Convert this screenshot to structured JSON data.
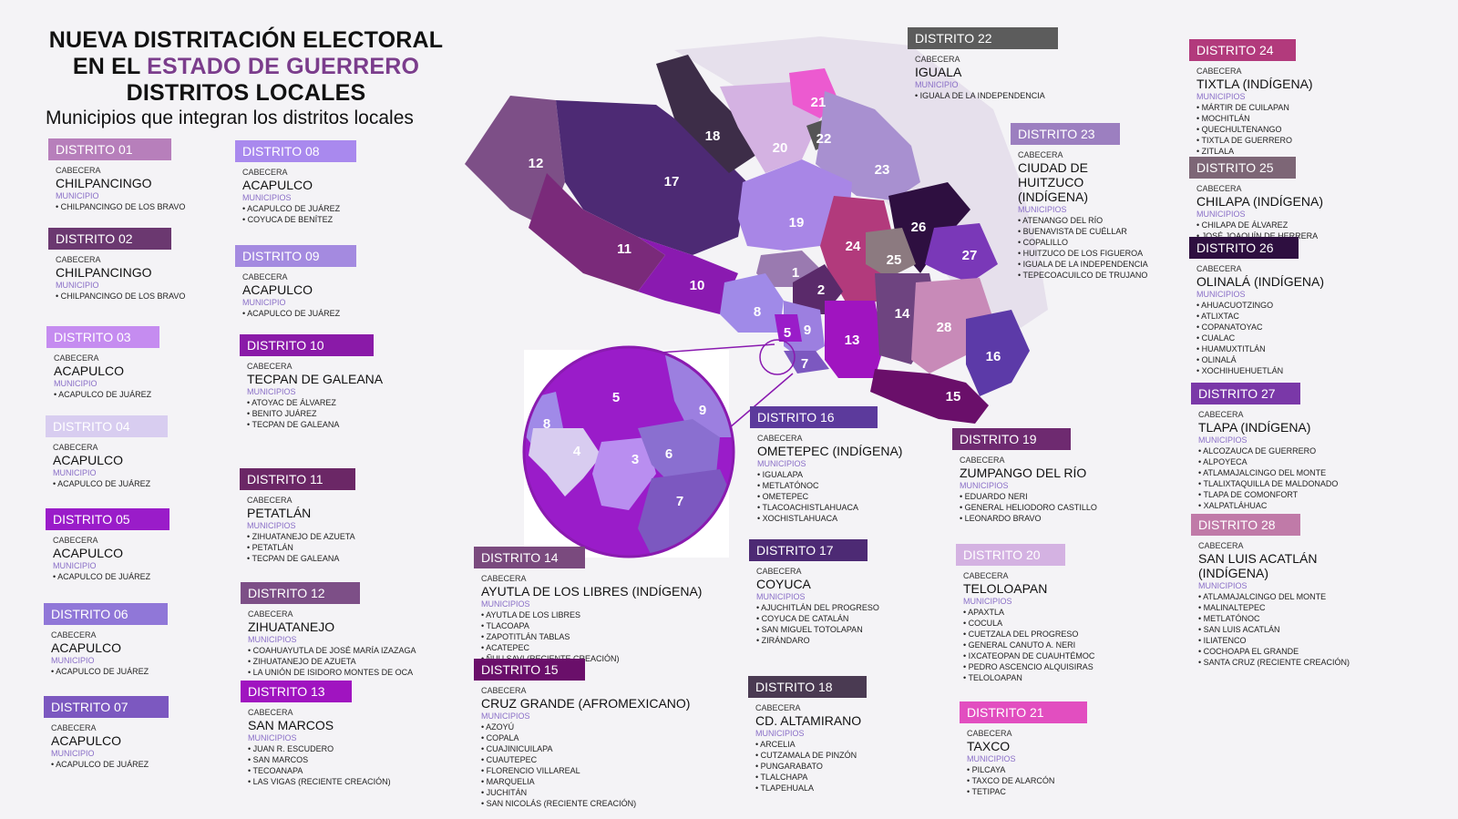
{
  "title": {
    "line1": "NUEVA DISTRITACIÓN ELECTORAL",
    "line2a": "EN EL ",
    "line2b": "ESTADO DE GUERRERO",
    "line3": "DISTRITOS LOCALES",
    "subtitle": "Municipios que integran los distritos locales"
  },
  "label_cabecera": "CABECERA",
  "districts": [
    {
      "header": "DISTRITO 01",
      "color": "#b77fbb",
      "cabecera": "CHILPANCINGO",
      "mlabel": "MUNICIPIO",
      "municipios": [
        "CHILPANCINGO DE LOS BRAVO"
      ]
    },
    {
      "header": "DISTRITO 02",
      "color": "#6b3870",
      "cabecera": "CHILPANCINGO",
      "mlabel": "MUNICIPIO",
      "municipios": [
        "CHILPANCINGO DE LOS BRAVO"
      ]
    },
    {
      "header": "DISTRITO 03",
      "color": "#c58cf0",
      "cabecera": "ACAPULCO",
      "mlabel": "MUNICIPIO",
      "municipios": [
        "ACAPULCO DE JUÁREZ"
      ]
    },
    {
      "header": "DISTRITO 04",
      "color": "#d8cdf0",
      "cabecera": "ACAPULCO",
      "mlabel": "MUNICIPIO",
      "municipios": [
        "ACAPULCO DE JUÁREZ"
      ]
    },
    {
      "header": "DISTRITO 05",
      "color": "#9a1cc9",
      "cabecera": "ACAPULCO",
      "mlabel": "MUNICIPIO",
      "municipios": [
        "ACAPULCO DE JUÁREZ"
      ]
    },
    {
      "header": "DISTRITO 06",
      "color": "#9077d8",
      "cabecera": "ACAPULCO",
      "mlabel": "MUNICIPIO",
      "municipios": [
        "ACAPULCO DE JUÁREZ"
      ]
    },
    {
      "header": "DISTRITO 07",
      "color": "#7c58c0",
      "cabecera": "ACAPULCO",
      "mlabel": "MUNICIPIO",
      "municipios": [
        "ACAPULCO DE JUÁREZ"
      ]
    },
    {
      "header": "DISTRITO 08",
      "color": "#a989ee",
      "cabecera": "ACAPULCO",
      "mlabel": "MUNICIPIOS",
      "municipios": [
        "ACAPULCO DE JUÁREZ",
        "COYUCA DE BENÍTEZ"
      ]
    },
    {
      "header": "DISTRITO 09",
      "color": "#a48ae0",
      "cabecera": "ACAPULCO",
      "mlabel": "MUNICIPIO",
      "municipios": [
        "ACAPULCO DE JUÁREZ"
      ]
    },
    {
      "header": "DISTRITO 10",
      "color": "#8a1aa8",
      "cabecera": "TECPAN DE GALEANA",
      "mlabel": "MUNICIPIOS",
      "municipios": [
        "ATOYAC DE ÁLVAREZ",
        "BENITO JUÁREZ",
        "TECPAN DE GALEANA"
      ]
    },
    {
      "header": "DISTRITO 11",
      "color": "#6b2766",
      "cabecera": "PETATLÁN",
      "mlabel": "MUNICIPIOS",
      "municipios": [
        "ZIHUATANEJO DE AZUETA",
        "PETATLÁN",
        "TECPAN DE GALEANA"
      ]
    },
    {
      "header": "DISTRITO 12",
      "color": "#7d4f87",
      "cabecera": "ZIHUATANEJO",
      "mlabel": "MUNICIPIOS",
      "municipios": [
        "COAHUAYUTLA DE JOSÉ MARÍA IZAZAGA",
        "ZIHUATANEJO DE AZUETA",
        "LA UNIÓN DE ISIDORO MONTES DE OCA"
      ]
    },
    {
      "header": "DISTRITO 13",
      "color": "#a014c0",
      "cabecera": "SAN MARCOS",
      "mlabel": "MUNICIPIOS",
      "municipios": [
        "JUAN R. ESCUDERO",
        "SAN MARCOS",
        "TECOANAPA",
        "LAS VIGAS (RECIENTE CREACIÓN)"
      ]
    },
    {
      "header": "DISTRITO 14",
      "color": "#7a4a7e",
      "cabecera": "AYUTLA DE LOS LIBRES (INDÍGENA)",
      "mlabel": "MUNICIPIOS",
      "municipios": [
        "AYUTLA DE LOS LIBRES",
        "TLACOAPA",
        "ZAPOTITLÁN TABLAS",
        "ACATEPEC",
        "ÑUU SAVI (RECIENTE CREACIÓN)"
      ]
    },
    {
      "header": "DISTRITO 15",
      "color": "#6a0f6a",
      "cabecera": "CRUZ GRANDE (AFROMEXICANO)",
      "mlabel": "MUNICIPIOS",
      "municipios": [
        "AZOYÚ",
        "COPALA",
        "CUAJINICUILAPA",
        "CUAUTEPEC",
        "FLORENCIO VILLAREAL",
        "MARQUELIA",
        "JUCHITÁN",
        "SAN NICOLÁS (RECIENTE CREACIÓN)"
      ]
    },
    {
      "header": "DISTRITO 16",
      "color": "#5c3a9c",
      "cabecera": "OMETEPEC (INDÍGENA)",
      "mlabel": "MUNICIPIOS",
      "municipios": [
        "IGUALAPA",
        "METLATÓNOC",
        "OMETEPEC",
        "TLACOACHISTLAHUACA",
        "XOCHISTLAHUACA"
      ]
    },
    {
      "header": "DISTRITO 17",
      "color": "#4d2a74",
      "cabecera": "COYUCA",
      "mlabel": "MUNICIPIOS",
      "municipios": [
        "AJUCHITLÁN DEL PROGRESO",
        "COYUCA DE CATALÁN",
        "SAN MIGUEL TOTOLAPAN",
        "ZIRÁNDARO"
      ]
    },
    {
      "header": "DISTRITO 18",
      "color": "#4a3a52",
      "cabecera": "CD. ALTAMIRANO",
      "mlabel": "MUNICIPIOS",
      "municipios": [
        "ARCELIA",
        "CUTZAMALA DE PINZÓN",
        "PUNGARABATO",
        "TLALCHAPA",
        "TLAPEHUALA"
      ]
    },
    {
      "header": "DISTRITO 19",
      "color": "#6e2a70",
      "cabecera": "ZUMPANGO DEL RÍO",
      "mlabel": "MUNICIPIOS",
      "municipios": [
        "EDUARDO NERI",
        "GENERAL HELIODORO CASTILLO",
        "LEONARDO BRAVO"
      ]
    },
    {
      "header": "DISTRITO 20",
      "color": "#d4b2e2",
      "cabecera": "TELOLOAPAN",
      "mlabel": "MUNICIPIOS",
      "municipios": [
        "APAXTLA",
        "COCULA",
        "CUETZALA DEL PROGRESO",
        "GENERAL CANUTO A. NERI",
        "IXCATEOPAN DE CUAUHTÉMOC",
        "PEDRO ASCENCIO ALQUISIRAS",
        "TELOLOAPAN"
      ]
    },
    {
      "header": "DISTRITO 21",
      "color": "#e24ec0",
      "cabecera": "TAXCO",
      "mlabel": "MUNICIPIOS",
      "municipios": [
        "PILCAYA",
        "TAXCO DE ALARCÓN",
        "TETIPAC"
      ]
    },
    {
      "header": "DISTRITO 22",
      "color": "#5c5c5c",
      "cabecera": "IGUALA",
      "mlabel": "MUNICIPIO",
      "municipios": [
        "IGUALA DE LA INDEPENDENCIA"
      ]
    },
    {
      "header": "DISTRITO 23",
      "color": "#9c7fc0",
      "cabecera": "CIUDAD DE HUITZUCO (INDÍGENA)",
      "mlabel": "MUNICIPIOS",
      "municipios": [
        "ATENANGO DEL RÍO",
        "BUENAVISTA DE CUÉLLAR",
        "COPALILLO",
        "HUITZUCO DE LOS FIGUEROA",
        "IGUALA DE LA INDEPENDENCIA",
        "TEPECOACUILCO DE TRUJANO"
      ]
    },
    {
      "header": "DISTRITO 24",
      "color": "#b23a7c",
      "cabecera": "TIXTLA (INDÍGENA)",
      "mlabel": "MUNICIPIOS",
      "municipios": [
        "MÁRTIR DE CUILAPAN",
        "MOCHITLÁN",
        "QUECHULTENANGO",
        "TIXTLA DE GUERRERO",
        "ZITLALA"
      ]
    },
    {
      "header": "DISTRITO 25",
      "color": "#7d6676",
      "cabecera": "CHILAPA (INDÍGENA)",
      "mlabel": "MUNICIPIOS",
      "municipios": [
        "CHILAPA DE ÁLVAREZ",
        "JOSÉ JOAQUÍN DE HERRERA"
      ]
    },
    {
      "header": "DISTRITO 26",
      "color": "#2e0f40",
      "cabecera": "OLINALÁ (INDÍGENA)",
      "mlabel": "MUNICIPIOS",
      "municipios": [
        "AHUACUOTZINGO",
        "ATLIXTAC",
        "COPANATOYAC",
        "CUALAC",
        "HUAMUXTITLÁN",
        "OLINALÁ",
        "XOCHIHUEHUETLÁN"
      ]
    },
    {
      "header": "DISTRITO 27",
      "color": "#7a38a8",
      "cabecera": "TLAPA (INDÍGENA)",
      "mlabel": "MUNICIPIOS",
      "municipios": [
        "ALCOZAUCA DE GUERRERO",
        "ALPOYECA",
        "ATLAMAJALCINGO DEL MONTE",
        "TLALIXTAQUILLA DE MALDONADO",
        "TLAPA DE COMONFORT",
        "XALPATLÁHUAC"
      ]
    },
    {
      "header": "DISTRITO 28",
      "color": "#c07aa8",
      "cabecera": "SAN LUIS ACATLÁN (INDÍGENA)",
      "mlabel": "MUNICIPIOS",
      "municipios": [
        "ATLAMAJALCINGO DEL MONTE",
        "MALINALTEPEC",
        "METLATÓNOC",
        "SAN LUIS ACATLÁN",
        "ILIATENCO",
        "COCHOAPA EL GRANDE",
        "SANTA CRUZ (RECIENTE CREACIÓN)"
      ]
    }
  ],
  "map": {
    "colors": {
      "d1": "#9a7ab0",
      "d2": "#5a2a6a",
      "d3": "#b98ef0",
      "d4": "#d8ccf0",
      "d5": "#9a1cc9",
      "d6": "#8a6fd0",
      "d7": "#7c58c0",
      "d8": "#a08ae8",
      "d9": "#9c7fe0",
      "d10": "#8a1ab0",
      "d11": "#7a2a7a",
      "d12": "#7d4f87",
      "d13": "#a014c0",
      "d14": "#6e4480",
      "d15": "#6a0f6a",
      "d16": "#5c3aa8",
      "d17": "#4d2a74",
      "d18": "#3d2d48",
      "d19": "#a886e6",
      "d20": "#d4b2e2",
      "d21": "#ec5ad0",
      "d22": "#555555",
      "d23": "#a890d0",
      "d24": "#b23a7c",
      "d25": "#8c7a80",
      "d26": "#2e0f40",
      "d27": "#7a38b8",
      "d28": "#c88ab8",
      "neighbor": "#e6e0ec"
    },
    "labels": [
      "1",
      "2",
      "5",
      "7",
      "8",
      "9",
      "10",
      "11",
      "12",
      "13",
      "14",
      "15",
      "16",
      "17",
      "18",
      "19",
      "20",
      "21",
      "22",
      "23",
      "24",
      "25",
      "26",
      "27",
      "28"
    ],
    "inset_labels": [
      "3",
      "4",
      "5",
      "6",
      "7",
      "8",
      "9"
    ]
  }
}
